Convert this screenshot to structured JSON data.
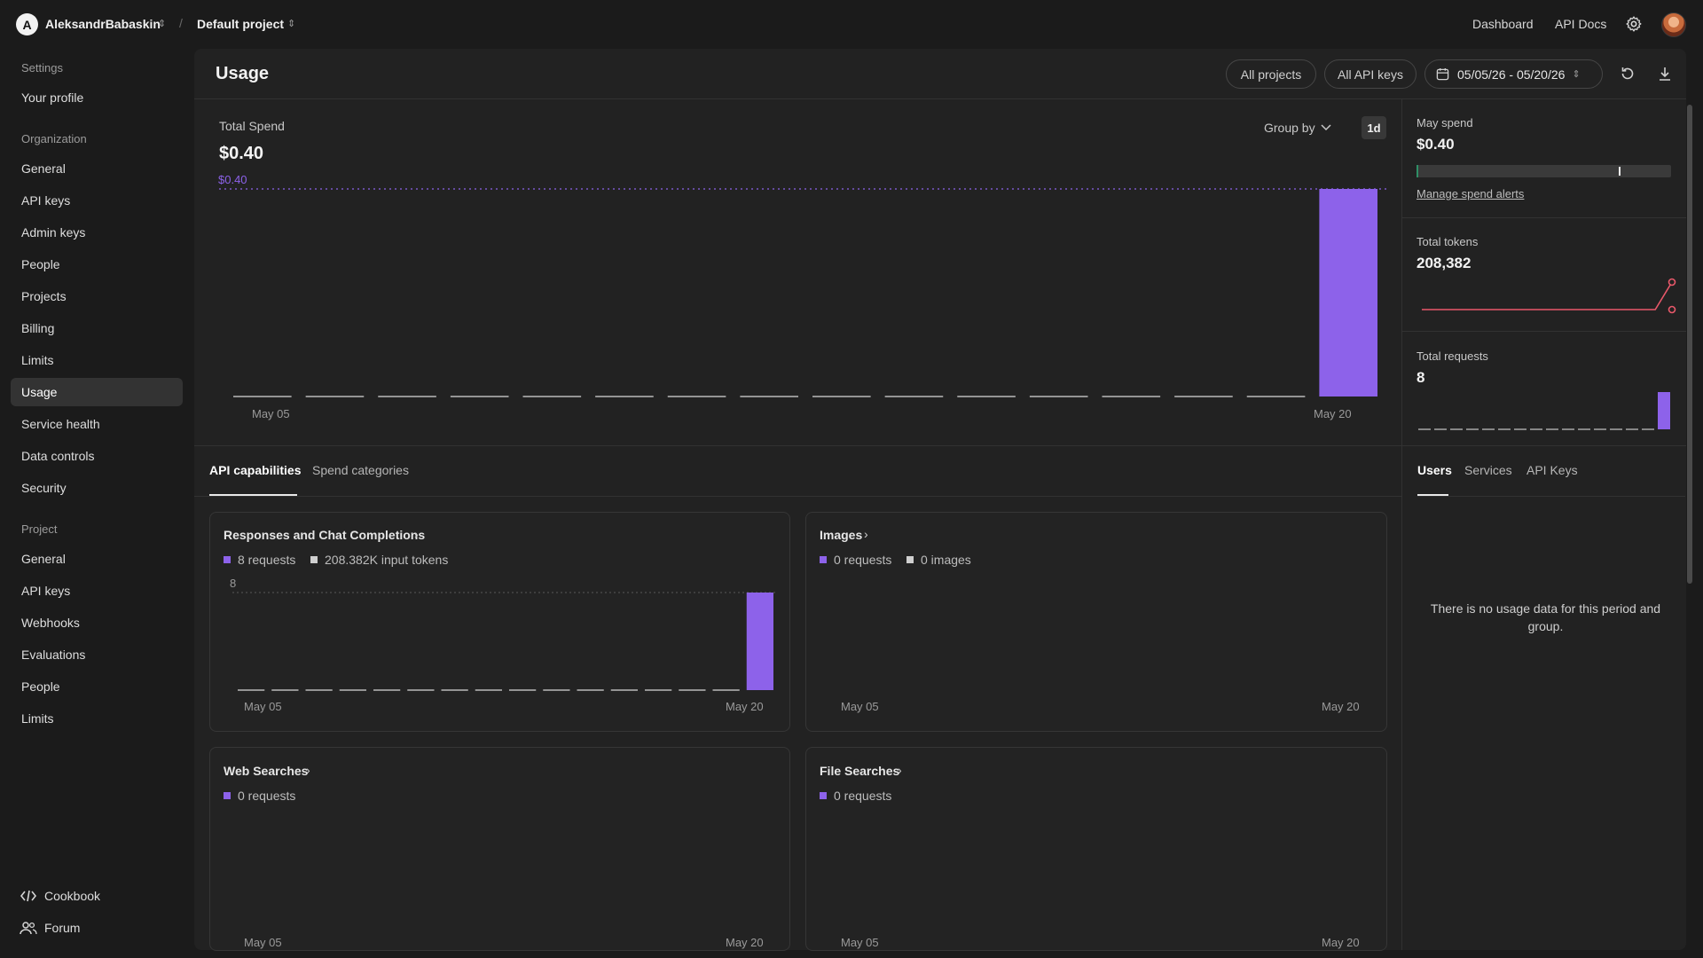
{
  "topbar": {
    "org_initial": "A",
    "org_name": "AleksandrBabaskin",
    "separator": "/",
    "project_name": "Default project",
    "links": [
      "Dashboard",
      "API Docs"
    ]
  },
  "sidebar": {
    "settings_title": "Settings",
    "your_profile": "Your profile",
    "org_title": "Organization",
    "org_items": [
      "General",
      "API keys",
      "Admin keys",
      "People",
      "Projects",
      "Billing",
      "Limits",
      "Usage",
      "Service health",
      "Data controls",
      "Security"
    ],
    "project_title": "Project",
    "project_items": [
      "General",
      "API keys",
      "Webhooks",
      "Evaluations",
      "People",
      "Limits"
    ],
    "bottom": [
      "Cookbook",
      "Forum"
    ]
  },
  "header": {
    "title": "Usage",
    "filters": [
      "All projects",
      "All API keys"
    ],
    "date_range": "05/05/26 - 05/20/26"
  },
  "spend": {
    "label": "Total Spend",
    "value": "$0.40",
    "max_line_label": "$0.40",
    "group_by": "Group by",
    "interval": "1d",
    "x_start": "May 05",
    "x_end": "May 20"
  },
  "side_stats": {
    "may_spend_label": "May spend",
    "may_spend_value": "$0.40",
    "manage_alerts": "Manage spend alerts",
    "tokens_label": "Total tokens",
    "tokens_value": "208,382",
    "requests_label": "Total requests",
    "requests_value": "8"
  },
  "tabs": {
    "left": [
      "API capabilities",
      "Spend categories"
    ],
    "right": [
      "Users",
      "Services",
      "API Keys"
    ]
  },
  "cards": {
    "responses": {
      "title": "Responses and Chat Completions",
      "legend": [
        "8 requests",
        "208.382K input tokens"
      ],
      "max_label": "8",
      "x_start": "May 05",
      "x_end": "May 20"
    },
    "images": {
      "title": "Images",
      "legend": [
        "0 requests",
        "0 images"
      ],
      "x_start": "May 05",
      "x_end": "May 20"
    },
    "web": {
      "title": "Web Searches",
      "legend": [
        "0 requests"
      ],
      "x_start": "May 05",
      "x_end": "May 20"
    },
    "file": {
      "title": "File Searches",
      "legend": [
        "0 requests"
      ],
      "x_start": "May 05",
      "x_end": "May 20"
    }
  },
  "no_data": "There is no usage data for this period and group.",
  "colors": {
    "accent": "#8d62ea",
    "tokens_line": "#e9586a",
    "background": "#1b1b1b",
    "panel": "#222222"
  },
  "chart_data": [
    {
      "type": "bar",
      "title": "Total Spend",
      "categories": [
        "May 05",
        "May 06",
        "May 07",
        "May 08",
        "May 09",
        "May 10",
        "May 11",
        "May 12",
        "May 13",
        "May 14",
        "May 15",
        "May 16",
        "May 17",
        "May 18",
        "May 19",
        "May 20"
      ],
      "values": [
        0,
        0,
        0,
        0,
        0,
        0,
        0,
        0,
        0,
        0,
        0,
        0,
        0,
        0,
        0,
        0.4
      ],
      "ylim": [
        0,
        0.4
      ]
    },
    {
      "type": "bar",
      "title": "Responses and Chat Completions",
      "categories": [
        "May 05",
        "May 06",
        "May 07",
        "May 08",
        "May 09",
        "May 10",
        "May 11",
        "May 12",
        "May 13",
        "May 14",
        "May 15",
        "May 16",
        "May 17",
        "May 18",
        "May 19",
        "May 20"
      ],
      "series": [
        {
          "name": "8 requests",
          "values": [
            0,
            0,
            0,
            0,
            0,
            0,
            0,
            0,
            0,
            0,
            0,
            0,
            0,
            0,
            0,
            8
          ]
        }
      ],
      "ylim": [
        0,
        8
      ]
    },
    {
      "type": "bar",
      "title": "Total requests",
      "values": [
        0,
        0,
        0,
        0,
        0,
        0,
        0,
        0,
        0,
        0,
        0,
        0,
        0,
        0,
        0,
        8
      ]
    },
    {
      "type": "line",
      "title": "Total tokens",
      "values": [
        0,
        0,
        0,
        0,
        0,
        0,
        0,
        0,
        0,
        0,
        0,
        0,
        0,
        0,
        0,
        208382
      ]
    }
  ]
}
